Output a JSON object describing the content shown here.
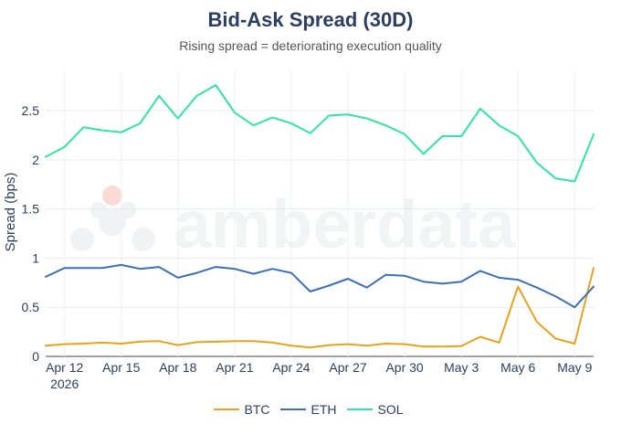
{
  "title": "Bid-Ask Spread (30D)",
  "subtitle": "Rising spread = deteriorating execution quality",
  "watermark": "amberdata",
  "chart_data": {
    "type": "line",
    "ylabel": "Spread (bps)",
    "xlabel": "",
    "ylim": [
      0,
      2.9
    ],
    "yticks": [
      0,
      0.5,
      1,
      1.5,
      2,
      2.5
    ],
    "ytick_labels": [
      "0",
      "0.5",
      "1",
      "1.5",
      "2",
      "2.5"
    ],
    "xticks": [
      {
        "x": "2026-04-12",
        "label": "Apr 12",
        "sublabel": "2026"
      },
      {
        "x": "2026-04-15",
        "label": "Apr 15",
        "sublabel": ""
      },
      {
        "x": "2026-04-18",
        "label": "Apr 18",
        "sublabel": ""
      },
      {
        "x": "2026-04-21",
        "label": "Apr 21",
        "sublabel": ""
      },
      {
        "x": "2026-04-24",
        "label": "Apr 24",
        "sublabel": ""
      },
      {
        "x": "2026-04-27",
        "label": "Apr 27",
        "sublabel": ""
      },
      {
        "x": "2026-04-30",
        "label": "Apr 30",
        "sublabel": ""
      },
      {
        "x": "2026-05-03",
        "label": "May 3",
        "sublabel": ""
      },
      {
        "x": "2026-05-06",
        "label": "May 6",
        "sublabel": ""
      },
      {
        "x": "2026-05-09",
        "label": "May 9",
        "sublabel": ""
      }
    ],
    "xlim": [
      "2026-04-11",
      "2026-05-10"
    ],
    "grid": true,
    "legend_position": "bottom-center",
    "x": [
      "2026-04-11",
      "2026-04-12",
      "2026-04-13",
      "2026-04-14",
      "2026-04-15",
      "2026-04-16",
      "2026-04-17",
      "2026-04-18",
      "2026-04-19",
      "2026-04-20",
      "2026-04-21",
      "2026-04-22",
      "2026-04-23",
      "2026-04-24",
      "2026-04-25",
      "2026-04-26",
      "2026-04-27",
      "2026-04-28",
      "2026-04-29",
      "2026-04-30",
      "2026-05-01",
      "2026-05-02",
      "2026-05-03",
      "2026-05-04",
      "2026-05-05",
      "2026-05-06",
      "2026-05-07",
      "2026-05-08",
      "2026-05-09",
      "2026-05-10"
    ],
    "series": [
      {
        "name": "BTC",
        "color": "#e8a21b",
        "values": [
          0.11,
          0.125,
          0.13,
          0.14,
          0.13,
          0.15,
          0.155,
          0.115,
          0.145,
          0.15,
          0.155,
          0.155,
          0.14,
          0.11,
          0.09,
          0.115,
          0.125,
          0.11,
          0.13,
          0.125,
          0.1,
          0.1,
          0.105,
          0.2,
          0.14,
          0.71,
          0.35,
          0.18,
          0.13,
          0.9
        ]
      },
      {
        "name": "ETH",
        "color": "#3d6fb6",
        "values": [
          0.81,
          0.9,
          0.9,
          0.9,
          0.93,
          0.89,
          0.91,
          0.8,
          0.85,
          0.91,
          0.89,
          0.84,
          0.89,
          0.85,
          0.66,
          0.72,
          0.79,
          0.7,
          0.83,
          0.82,
          0.76,
          0.74,
          0.76,
          0.87,
          0.8,
          0.78,
          0.7,
          0.61,
          0.5,
          0.71
        ]
      },
      {
        "name": "SOL",
        "color": "#2ee6a3",
        "values": [
          2.03,
          2.13,
          2.33,
          2.3,
          2.28,
          2.37,
          2.65,
          2.42,
          2.65,
          2.76,
          2.48,
          2.35,
          2.43,
          2.37,
          2.27,
          2.45,
          2.46,
          2.42,
          2.35,
          2.26,
          2.06,
          2.24,
          2.24,
          2.52,
          2.35,
          2.24,
          1.97,
          1.81,
          1.78,
          2.26
        ]
      }
    ]
  }
}
